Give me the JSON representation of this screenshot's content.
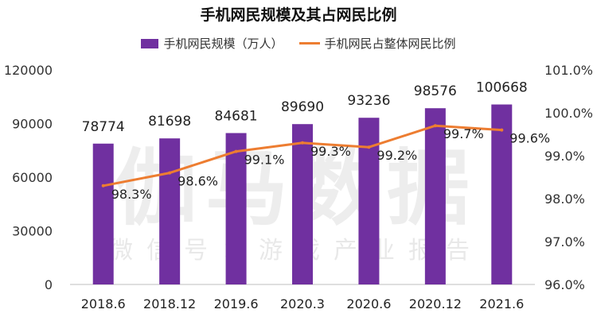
{
  "chart_data": {
    "type": "bar+line",
    "title": "手机网民规模及其占网民比例",
    "categories": [
      "2018.6",
      "2018.12",
      "2019.6",
      "2020.3",
      "2020.6",
      "2020.12",
      "2021.6"
    ],
    "series": [
      {
        "name": "手机网民规模（万人）",
        "type": "bar",
        "axis": "left",
        "color": "#7030a0",
        "values": [
          78774,
          81698,
          84681,
          89690,
          93236,
          98576,
          100668
        ],
        "labels": [
          "78774",
          "81698",
          "84681",
          "89690",
          "93236",
          "98576",
          "100668"
        ]
      },
      {
        "name": "手机网民占整体网民比例",
        "type": "line",
        "axis": "right",
        "color": "#ed7d31",
        "values": [
          98.3,
          98.6,
          99.1,
          99.3,
          99.2,
          99.7,
          99.6
        ],
        "labels": [
          "98.3%",
          "98.6%",
          "99.1%",
          "99.3%",
          "99.2%",
          "99.7%",
          "99.6%"
        ]
      }
    ],
    "y_left": {
      "ylim": [
        0,
        120000
      ],
      "ticks": [
        0,
        30000,
        60000,
        90000,
        120000
      ],
      "tick_labels": [
        "0",
        "30000",
        "60000",
        "90000",
        "120000"
      ]
    },
    "y_right": {
      "ylim": [
        96.0,
        101.0
      ],
      "ticks": [
        96,
        97,
        98,
        99,
        100,
        101
      ],
      "tick_labels": [
        "96.0%",
        "97.0%",
        "98.0%",
        "99.0%",
        "100.0%",
        "101.0%"
      ]
    },
    "legend_position": "top-center",
    "grid": false
  },
  "watermark": {
    "main": "伽马数据",
    "sub": "微信号：游戏产业报告"
  }
}
